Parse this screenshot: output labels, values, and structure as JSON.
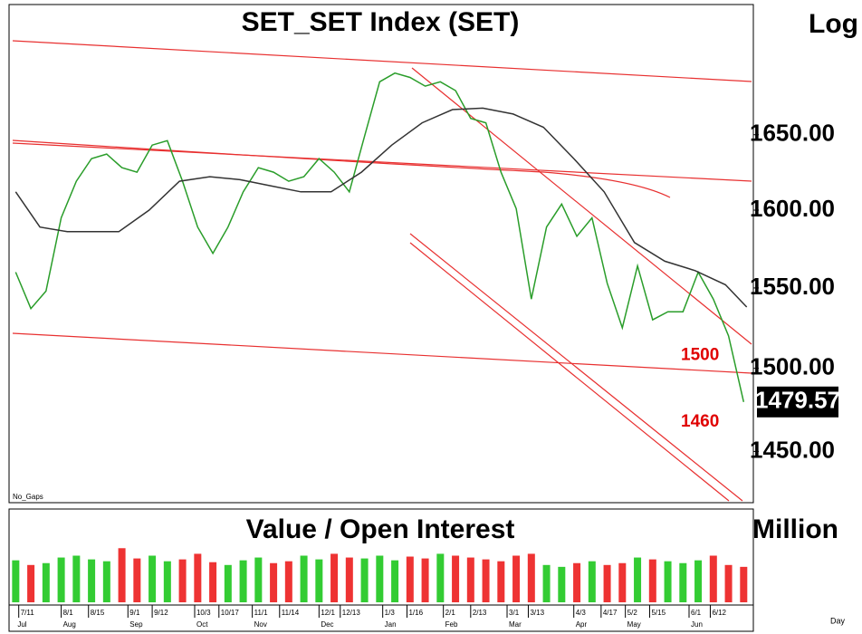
{
  "chart_data": [
    {
      "type": "line",
      "title": "SET_SET Index (SET)",
      "scale_label": "Log",
      "log_scale": true,
      "note": "No_Gaps",
      "ylim": [
        1420,
        1740
      ],
      "xlim": [
        -1,
        242
      ],
      "yticks": [
        {
          "value": 1450,
          "label": "1450.00"
        },
        {
          "value": 1500,
          "label": "1500.00"
        },
        {
          "value": 1550,
          "label": "1550.00"
        },
        {
          "value": 1600,
          "label": "1600.00"
        },
        {
          "value": 1650,
          "label": "1650.00"
        }
      ],
      "last_value": {
        "value": 1479.57,
        "label": "1479.57"
      },
      "annotations": [
        {
          "value": 1500,
          "label": "1500",
          "color": "#e00000"
        },
        {
          "value": 1460,
          "label": "1460",
          "color": "#e00000"
        }
      ],
      "series": [
        {
          "name": "Close",
          "color": "#2a9d2a",
          "x": [
            0,
            5,
            10,
            15,
            20,
            25,
            30,
            35,
            40,
            45,
            50,
            55,
            60,
            65,
            70,
            75,
            80,
            85,
            90,
            95,
            100,
            105,
            110,
            115,
            120,
            125,
            130,
            135,
            140,
            145,
            150,
            155,
            160,
            165,
            170,
            175,
            180,
            185,
            190,
            195,
            200,
            205,
            210,
            215,
            220,
            225,
            230,
            235,
            240
          ],
          "values": [
            1560,
            1537,
            1548,
            1595,
            1619,
            1634,
            1637,
            1628,
            1625,
            1643,
            1646,
            1619,
            1589,
            1572,
            1589,
            1612,
            1628,
            1625,
            1619,
            1622,
            1634,
            1625,
            1612,
            1649,
            1686,
            1692,
            1689,
            1683,
            1686,
            1680,
            1661,
            1658,
            1625,
            1601,
            1543,
            1589,
            1604,
            1583,
            1595,
            1553,
            1525,
            1564,
            1530,
            1535,
            1535,
            1560,
            1543,
            1520,
            1479.57
          ]
        },
        {
          "name": "MA",
          "color": "#333333",
          "x": [
            0,
            8,
            17,
            27,
            34,
            44,
            54,
            64,
            74,
            84,
            94,
            104,
            114,
            124,
            134,
            144,
            154,
            164,
            174,
            184,
            194,
            204,
            214,
            224,
            234,
            241
          ],
          "values": [
            1612,
            1589,
            1586,
            1586,
            1586,
            1600,
            1619,
            1622,
            1620,
            1616,
            1612,
            1612,
            1625,
            1643,
            1658,
            1667,
            1668,
            1664,
            1655,
            1634,
            1612,
            1579,
            1567,
            1561,
            1552,
            1538
          ]
        }
      ]
    },
    {
      "type": "bar",
      "title": "Value / Open Interest",
      "unit_label": "Million",
      "up_color": "#33cc33",
      "down_color": "#ee3333",
      "ylim": [
        0,
        100
      ],
      "x": [
        0,
        5,
        10,
        15,
        20,
        25,
        30,
        35,
        40,
        45,
        50,
        55,
        60,
        65,
        70,
        75,
        80,
        85,
        90,
        95,
        100,
        105,
        110,
        115,
        120,
        125,
        130,
        135,
        140,
        145,
        150,
        155,
        160,
        165,
        170,
        175,
        180,
        185,
        190,
        195,
        200,
        205,
        210,
        215,
        220,
        225,
        230,
        235,
        240
      ],
      "values": [
        45,
        40,
        42,
        48,
        50,
        46,
        44,
        58,
        47,
        50,
        44,
        46,
        52,
        43,
        40,
        45,
        48,
        42,
        44,
        50,
        46,
        52,
        48,
        47,
        50,
        45,
        49,
        47,
        52,
        50,
        48,
        46,
        44,
        50,
        52,
        40,
        38,
        42,
        44,
        40,
        42,
        48,
        46,
        44,
        42,
        45,
        50,
        40,
        38
      ],
      "xticks": [
        {
          "value": 1,
          "label": "7/11"
        },
        {
          "value": 15,
          "label": "8/1"
        },
        {
          "value": 24,
          "label": "8/15"
        },
        {
          "value": 37,
          "label": "9/1"
        },
        {
          "value": 45,
          "label": "9/12"
        },
        {
          "value": 59,
          "label": "10/3"
        },
        {
          "value": 67,
          "label": "10/17"
        },
        {
          "value": 78,
          "label": "11/1"
        },
        {
          "value": 87,
          "label": "11/14"
        },
        {
          "value": 100,
          "label": "12/1"
        },
        {
          "value": 107,
          "label": "12/13"
        },
        {
          "value": 121,
          "label": "1/3"
        },
        {
          "value": 129,
          "label": "1/16"
        },
        {
          "value": 141,
          "label": "2/1"
        },
        {
          "value": 150,
          "label": "2/13"
        },
        {
          "value": 162,
          "label": "3/1"
        },
        {
          "value": 169,
          "label": "3/13"
        },
        {
          "value": 184,
          "label": "4/3"
        },
        {
          "value": 193,
          "label": "4/17"
        },
        {
          "value": 201,
          "label": "5/2"
        },
        {
          "value": 209,
          "label": "5/15"
        },
        {
          "value": 222,
          "label": "6/1"
        },
        {
          "value": 229,
          "label": "6/12"
        }
      ],
      "months": [
        {
          "value": 0,
          "label": "Jul"
        },
        {
          "value": 15,
          "label": "Aug"
        },
        {
          "value": 37,
          "label": "Sep"
        },
        {
          "value": 59,
          "label": "Oct"
        },
        {
          "value": 78,
          "label": "Nov"
        },
        {
          "value": 100,
          "label": "Dec"
        },
        {
          "value": 121,
          "label": "Jan"
        },
        {
          "value": 141,
          "label": "Feb"
        },
        {
          "value": 162,
          "label": "Mar"
        },
        {
          "value": 184,
          "label": "Apr"
        },
        {
          "value": 201,
          "label": "May"
        },
        {
          "value": 222,
          "label": "Jun"
        }
      ],
      "period_label": "Day"
    }
  ]
}
